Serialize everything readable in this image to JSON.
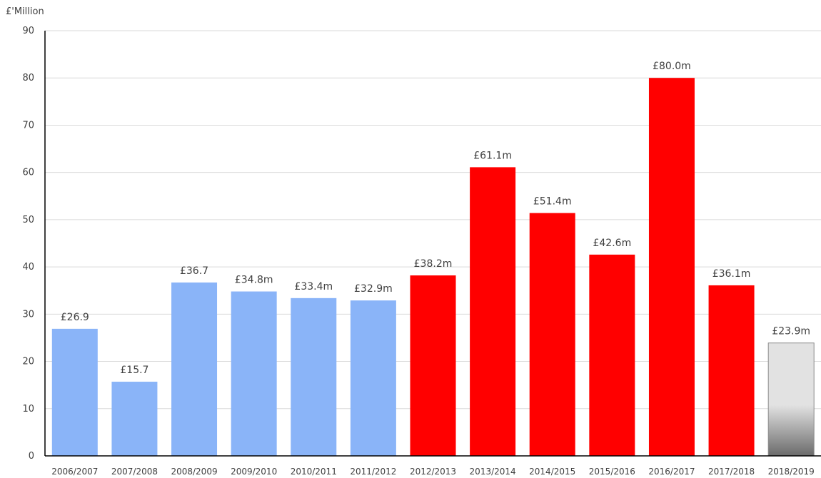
{
  "chart_data": {
    "type": "bar",
    "ylabel": "£'Million",
    "ylim": [
      0,
      90
    ],
    "yticks": [
      0,
      10,
      20,
      30,
      40,
      50,
      60,
      70,
      80,
      90
    ],
    "grid": true,
    "categories": [
      "2006/2007",
      "2007/2008",
      "2008/2009",
      "2009/2010",
      "2010/2011",
      "2011/2012",
      "2012/2013",
      "2013/2014",
      "2014/2015",
      "2015/2016",
      "2016/2017",
      "2017/2018",
      "2018/2019"
    ],
    "values": [
      26.9,
      15.7,
      36.7,
      34.8,
      33.4,
      32.9,
      38.2,
      61.1,
      51.4,
      42.6,
      80.0,
      36.1,
      23.9
    ],
    "data_labels": [
      "£26.9",
      "£15.7",
      "£36.7",
      "£34.8m",
      "£33.4m",
      "£32.9m",
      "£38.2m",
      "£61.1m",
      "£51.4m",
      "£42.6m",
      "£80.0m",
      "£36.1m",
      "£23.9m"
    ],
    "bar_styles": [
      "blue",
      "blue",
      "blue",
      "blue",
      "blue",
      "blue",
      "red",
      "red",
      "red",
      "red",
      "red",
      "red",
      "grey-gradient"
    ],
    "colors": {
      "blue": "#8ab4f8",
      "red": "#ff0000",
      "grey_top": "#e2e2e2",
      "grey_bottom": "#6b6b6b",
      "grid": "#d9d9d9",
      "axis": "#000000"
    }
  }
}
